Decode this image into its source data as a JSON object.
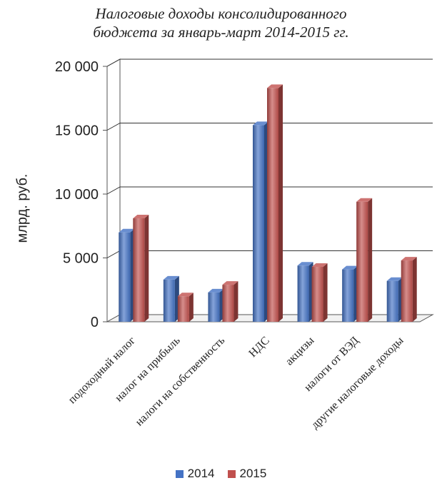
{
  "chart_data": {
    "type": "bar",
    "title_lines": [
      "Налоговые доходы консолидированного",
      "бюджета за январь-март 2014-2015 гг."
    ],
    "ylabel": "млрд. руб.",
    "xlabel": "",
    "ylim": [
      0,
      20000
    ],
    "yticks": [
      "0",
      "5 000",
      "10 000",
      "15 000",
      "20 000"
    ],
    "ytick_values": [
      0,
      5000,
      10000,
      15000,
      20000
    ],
    "categories": [
      "подоходный налог",
      "налог на прибыль",
      "налоги на собственность",
      "НДС",
      "акцизы",
      "налоги от ВЭД",
      "другие налоговые доходы"
    ],
    "series": [
      {
        "name": "2014",
        "color": "#4472c4",
        "values": [
          7000,
          3300,
          2300,
          15400,
          4400,
          4100,
          3200
        ]
      },
      {
        "name": "2015",
        "color": "#c0504d",
        "values": [
          8100,
          2000,
          2900,
          18300,
          4300,
          9400,
          4800
        ]
      }
    ],
    "grid": true,
    "legend_position": "bottom"
  }
}
